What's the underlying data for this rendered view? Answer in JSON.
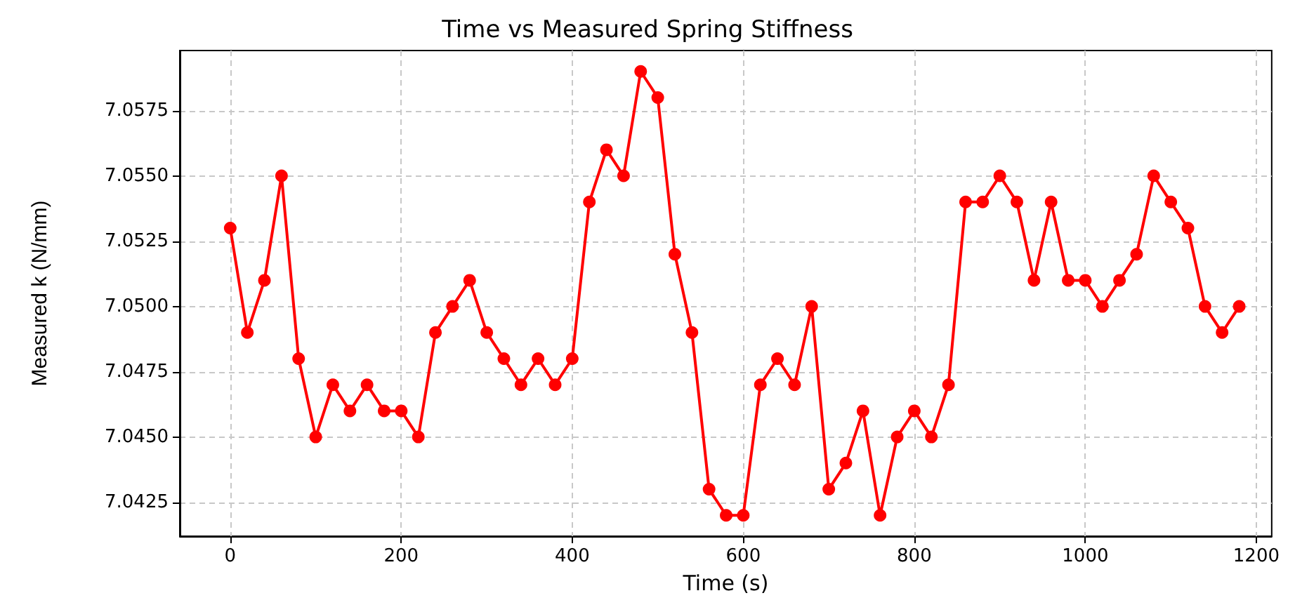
{
  "chart_data": {
    "type": "line",
    "title": "Time vs Measured Spring Stiffness",
    "xlabel": "Time (s)",
    "ylabel": "Measured k (N/mm)",
    "x": [
      0,
      20,
      40,
      60,
      80,
      100,
      120,
      140,
      160,
      180,
      200,
      220,
      240,
      260,
      280,
      300,
      320,
      340,
      360,
      380,
      400,
      420,
      440,
      460,
      480,
      500,
      520,
      540,
      560,
      580,
      600,
      620,
      640,
      660,
      680,
      700,
      720,
      740,
      760,
      780,
      800,
      820,
      840,
      860,
      880,
      900,
      920,
      940,
      960,
      980,
      1000,
      1020,
      1040,
      1060,
      1080,
      1100,
      1120,
      1140,
      1160,
      1180
    ],
    "series": [
      {
        "color": "#ff0000",
        "values": [
          7.053,
          7.049,
          7.051,
          7.055,
          7.048,
          7.045,
          7.047,
          7.046,
          7.047,
          7.046,
          7.046,
          7.045,
          7.049,
          7.05,
          7.051,
          7.049,
          7.048,
          7.047,
          7.048,
          7.047,
          7.048,
          7.054,
          7.056,
          7.055,
          7.059,
          7.058,
          7.052,
          7.049,
          7.043,
          7.042,
          7.042,
          7.047,
          7.048,
          7.047,
          7.05,
          7.043,
          7.044,
          7.046,
          7.042,
          7.045,
          7.046,
          7.045,
          7.047,
          7.054,
          7.054,
          7.055,
          7.054,
          7.051,
          7.054,
          7.051,
          7.051,
          7.05,
          7.051,
          7.052,
          7.055,
          7.054,
          7.053,
          7.05,
          7.049,
          7.05
        ]
      }
    ],
    "xlim": [
      -59,
      1218
    ],
    "xticks": [
      0,
      200,
      400,
      600,
      800,
      1000,
      1200
    ],
    "ylim": [
      7.0412,
      7.0598
    ],
    "yticks": [
      {
        "value": 7.0425,
        "label": "7.0425"
      },
      {
        "value": 7.045,
        "label": "7.0450"
      },
      {
        "value": 7.0475,
        "label": "7.0475"
      },
      {
        "value": 7.05,
        "label": "7.0500"
      },
      {
        "value": 7.0525,
        "label": "7.0525"
      },
      {
        "value": 7.055,
        "label": "7.0550"
      },
      {
        "value": 7.0575,
        "label": "7.0575"
      }
    ],
    "grid": true,
    "marker": "circle",
    "line_style": "solid"
  }
}
